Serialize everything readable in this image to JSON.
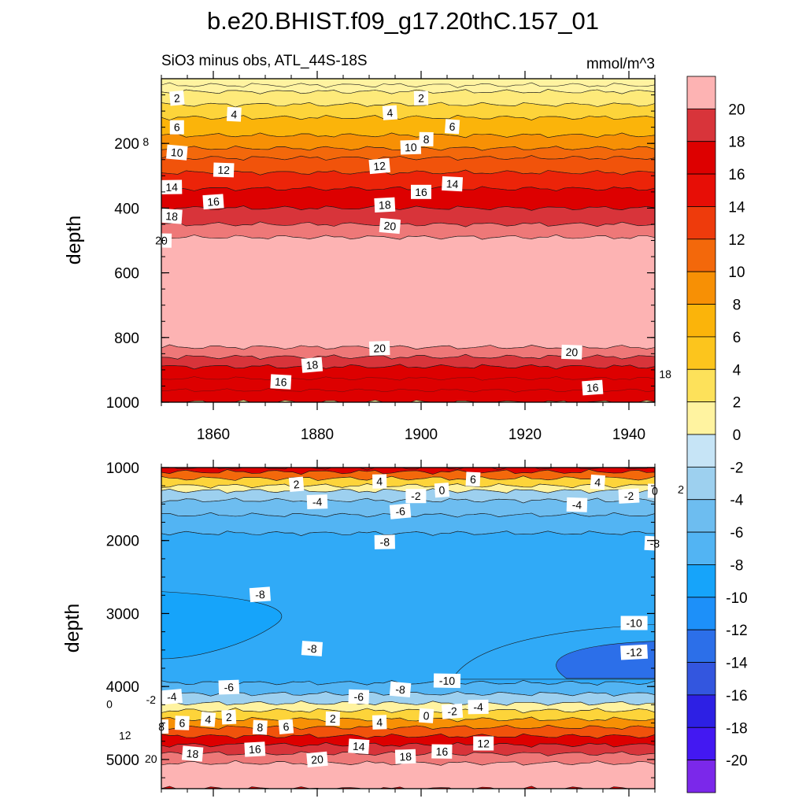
{
  "title": "b.e20.BHIST.f09_g17.20thC.157_01",
  "colors": {
    "neg": [
      "#c6e4f6",
      "#b2daf2",
      "#9dd0ef",
      "#86c6ee",
      "#6dbdf0",
      "#52b4f3",
      "#30aaf7",
      "#16a4fa",
      "#199cfb",
      "#1d90f9",
      "#2480f3",
      "#2c6fe9",
      "#3356df",
      "#383cd8",
      "#2d20e4",
      "#1a10f0",
      "#4318f2",
      "#7b28ea"
    ],
    "pos": [
      "#fff3a0",
      "#feea7a",
      "#fde15a",
      "#fdd43a",
      "#fcc51d",
      "#fbb40a",
      "#f9a203",
      "#f79005",
      "#f57c08",
      "#f3680b",
      "#f1530b",
      "#ee3b0c",
      "#ec2409",
      "#e70e06",
      "#dd0000",
      "#cc0d0d",
      "#d8343a",
      "#ee7878",
      "#fdb3b3"
    ]
  },
  "chart_data": [
    {
      "type": "contour",
      "title": "SiO3 minus obs, ATL_44S-18S",
      "units": "mmol/m^3",
      "ylabel": "depth",
      "xlim": [
        1850,
        1945
      ],
      "ylim": [
        0,
        1000
      ],
      "xticks": [
        1860,
        1880,
        1900,
        1920,
        1940
      ],
      "yticks": [
        200,
        400,
        600,
        800,
        1000
      ],
      "bands": [
        {
          "value": 0,
          "top": 20,
          "bot": 40
        },
        {
          "value": 2,
          "top": 40,
          "bot": 80
        },
        {
          "value": 4,
          "top": 80,
          "bot": 120
        },
        {
          "value": 6,
          "top": 120,
          "bot": 175
        },
        {
          "value": 8,
          "top": 175,
          "bot": 215
        },
        {
          "value": 10,
          "top": 215,
          "bot": 245
        },
        {
          "value": 12,
          "top": 245,
          "bot": 290
        },
        {
          "value": 14,
          "top": 290,
          "bot": 340
        },
        {
          "value": 16,
          "top": 340,
          "bot": 400
        },
        {
          "value": 18,
          "top": 400,
          "bot": 450
        },
        {
          "value": 19,
          "top": 450,
          "bot": 490
        },
        {
          "value": 20,
          "top": 490,
          "bot": 830
        },
        {
          "value": 19,
          "top": 830,
          "bot": 860
        },
        {
          "value": 18,
          "top": 860,
          "bot": 890
        },
        {
          "value": 16,
          "top": 890,
          "bot": 1000
        }
      ],
      "contour_labels": [
        {
          "text": "2",
          "x": 1853,
          "y": 60
        },
        {
          "text": "2",
          "x": 1900,
          "y": 60
        },
        {
          "text": "4",
          "x": 1864,
          "y": 110
        },
        {
          "text": "4",
          "x": 1894,
          "y": 105
        },
        {
          "text": "6",
          "x": 1853,
          "y": 150
        },
        {
          "text": "6",
          "x": 1906,
          "y": 148
        },
        {
          "text": "8",
          "x": 1847,
          "y": 195
        },
        {
          "text": "8",
          "x": 1901,
          "y": 187
        },
        {
          "text": "10",
          "x": 1853,
          "y": 228
        },
        {
          "text": "10",
          "x": 1898,
          "y": 212
        },
        {
          "text": "12",
          "x": 1862,
          "y": 282
        },
        {
          "text": "12",
          "x": 1892,
          "y": 270
        },
        {
          "text": "14",
          "x": 1852,
          "y": 335
        },
        {
          "text": "14",
          "x": 1906,
          "y": 325
        },
        {
          "text": "16",
          "x": 1860,
          "y": 380
        },
        {
          "text": "16",
          "x": 1900,
          "y": 350
        },
        {
          "text": "18",
          "x": 1852,
          "y": 425
        },
        {
          "text": "18",
          "x": 1893,
          "y": 390
        },
        {
          "text": "20",
          "x": 1850,
          "y": 500
        },
        {
          "text": "20",
          "x": 1894,
          "y": 455
        },
        {
          "text": "20",
          "x": 1892,
          "y": 833
        },
        {
          "text": "20",
          "x": 1929,
          "y": 845
        },
        {
          "text": "18",
          "x": 1879,
          "y": 885
        },
        {
          "text": "18",
          "x": 1947,
          "y": 913
        },
        {
          "text": "16",
          "x": 1873,
          "y": 937
        },
        {
          "text": "16",
          "x": 1933,
          "y": 955
        }
      ]
    },
    {
      "type": "contour",
      "ylabel": "depth",
      "xlim": [
        1850,
        1945
      ],
      "ylim": [
        1000,
        5400
      ],
      "yticks": [
        1000,
        2000,
        3000,
        4000,
        5000
      ],
      "bands": [
        {
          "value": 16,
          "top": 1000,
          "bot": 1060
        },
        {
          "value": 10,
          "top": 1060,
          "bot": 1150
        },
        {
          "value": 4,
          "top": 1150,
          "bot": 1250
        },
        {
          "value": 0,
          "top": 1250,
          "bot": 1320
        },
        {
          "value": -3,
          "top": 1320,
          "bot": 1450
        },
        {
          "value": -5,
          "top": 1450,
          "bot": 1650
        },
        {
          "value": -7,
          "top": 1650,
          "bot": 1900
        },
        {
          "value": -8,
          "top": 1900,
          "bot": 3950
        },
        {
          "value": -6,
          "top": 3950,
          "bot": 4100
        },
        {
          "value": -3,
          "top": 4100,
          "bot": 4230
        },
        {
          "value": 0,
          "top": 4230,
          "bot": 4330
        },
        {
          "value": 4,
          "top": 4330,
          "bot": 4450
        },
        {
          "value": 8,
          "top": 4450,
          "bot": 4560
        },
        {
          "value": 12,
          "top": 4560,
          "bot": 4680
        },
        {
          "value": 16,
          "top": 4680,
          "bot": 4800
        },
        {
          "value": 18,
          "top": 4800,
          "bot": 4920
        },
        {
          "value": 19,
          "top": 4920,
          "bot": 5050
        },
        {
          "value": 20,
          "top": 5050,
          "bot": 5400
        }
      ],
      "contour_labels": [
        {
          "text": "2",
          "x": 1876,
          "y": 1230
        },
        {
          "text": "4",
          "x": 1892,
          "y": 1190
        },
        {
          "text": "6",
          "x": 1910,
          "y": 1160
        },
        {
          "text": "0",
          "x": 1904,
          "y": 1310
        },
        {
          "text": "-2",
          "x": 1899,
          "y": 1390
        },
        {
          "text": "4",
          "x": 1934,
          "y": 1200
        },
        {
          "text": "-2",
          "x": 1940,
          "y": 1390
        },
        {
          "text": "0",
          "x": 1945,
          "y": 1320
        },
        {
          "text": "2",
          "x": 1950,
          "y": 1300
        },
        {
          "text": "-4",
          "x": 1880,
          "y": 1470
        },
        {
          "text": "-4",
          "x": 1930,
          "y": 1510
        },
        {
          "text": "-6",
          "x": 1896,
          "y": 1600
        },
        {
          "text": "-8",
          "x": 1893,
          "y": 2020
        },
        {
          "text": "-8",
          "x": 1945,
          "y": 2040
        },
        {
          "text": "-8",
          "x": 1869,
          "y": 2740
        },
        {
          "text": "-10",
          "x": 1941,
          "y": 3130
        },
        {
          "text": "-8",
          "x": 1879,
          "y": 3480
        },
        {
          "text": "-12",
          "x": 1941,
          "y": 3530
        },
        {
          "text": "-10",
          "x": 1905,
          "y": 3920
        },
        {
          "text": "-8",
          "x": 1896,
          "y": 4040
        },
        {
          "text": "-6",
          "x": 1863,
          "y": 4010
        },
        {
          "text": "-6",
          "x": 1888,
          "y": 4140
        },
        {
          "text": "-4",
          "x": 1852,
          "y": 4140
        },
        {
          "text": "-4",
          "x": 1911,
          "y": 4280
        },
        {
          "text": "-2",
          "x": 1848,
          "y": 4180
        },
        {
          "text": "-2",
          "x": 1906,
          "y": 4340
        },
        {
          "text": "0",
          "x": 1840,
          "y": 4240
        },
        {
          "text": "0",
          "x": 1901,
          "y": 4400
        },
        {
          "text": "2",
          "x": 1863,
          "y": 4420
        },
        {
          "text": "2",
          "x": 1883,
          "y": 4440
        },
        {
          "text": "4",
          "x": 1859,
          "y": 4450
        },
        {
          "text": "4",
          "x": 1892,
          "y": 4490
        },
        {
          "text": "6",
          "x": 1854,
          "y": 4500
        },
        {
          "text": "6",
          "x": 1874,
          "y": 4550
        },
        {
          "text": "8",
          "x": 1850,
          "y": 4550
        },
        {
          "text": "8",
          "x": 1869,
          "y": 4560
        },
        {
          "text": "12",
          "x": 1843,
          "y": 4670
        },
        {
          "text": "12",
          "x": 1912,
          "y": 4780
        },
        {
          "text": "14",
          "x": 1888,
          "y": 4820
        },
        {
          "text": "16",
          "x": 1868,
          "y": 4860
        },
        {
          "text": "16",
          "x": 1904,
          "y": 4890
        },
        {
          "text": "18",
          "x": 1856,
          "y": 4920
        },
        {
          "text": "18",
          "x": 1897,
          "y": 4960
        },
        {
          "text": "20",
          "x": 1848,
          "y": 4990
        },
        {
          "text": "20",
          "x": 1880,
          "y": 5000
        }
      ]
    },
    {
      "type": "colorbar",
      "levels": [
        -20,
        -18,
        -16,
        -14,
        -12,
        -10,
        -8,
        -6,
        -4,
        -2,
        0,
        2,
        4,
        6,
        8,
        10,
        12,
        14,
        16,
        18,
        20
      ],
      "tick_labels": [
        "20",
        "18",
        "16",
        "14",
        "12",
        "10",
        "8",
        "6",
        "4",
        "2",
        "0",
        "-2",
        "-4",
        "-6",
        "-8",
        "-10",
        "-12",
        "-14",
        "-16",
        "-18",
        "-20"
      ]
    }
  ]
}
